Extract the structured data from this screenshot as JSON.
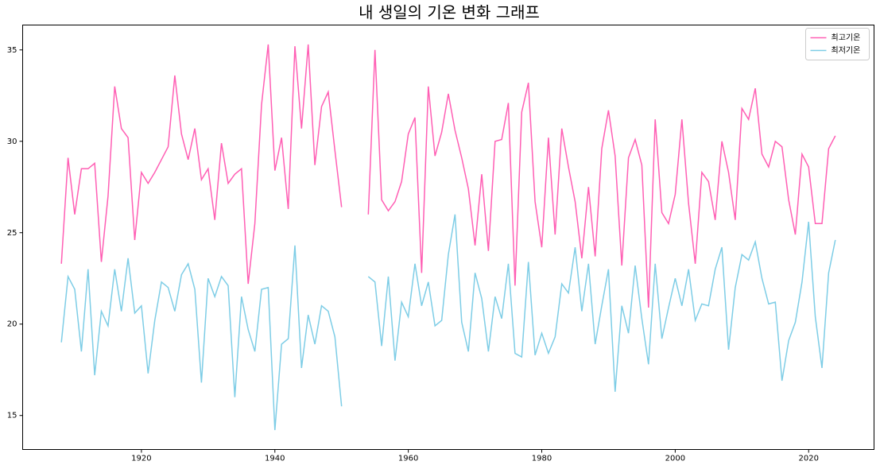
{
  "chart_data": {
    "type": "line",
    "title": "내 생일의 기온 변화 그래프",
    "x": [
      1908,
      1909,
      1910,
      1911,
      1912,
      1913,
      1914,
      1915,
      1916,
      1917,
      1918,
      1919,
      1920,
      1921,
      1922,
      1923,
      1924,
      1925,
      1926,
      1927,
      1928,
      1929,
      1930,
      1931,
      1932,
      1933,
      1934,
      1935,
      1936,
      1937,
      1938,
      1939,
      1940,
      1941,
      1942,
      1943,
      1944,
      1945,
      1946,
      1947,
      1948,
      1949,
      1950,
      1951,
      1952,
      1953,
      1954,
      1955,
      1956,
      1957,
      1958,
      1959,
      1960,
      1961,
      1962,
      1963,
      1964,
      1965,
      1966,
      1967,
      1968,
      1969,
      1970,
      1971,
      1972,
      1973,
      1974,
      1975,
      1976,
      1977,
      1978,
      1979,
      1980,
      1981,
      1982,
      1983,
      1984,
      1985,
      1986,
      1987,
      1988,
      1989,
      1990,
      1991,
      1992,
      1993,
      1994,
      1995,
      1996,
      1997,
      1998,
      1999,
      2000,
      2001,
      2002,
      2003,
      2004,
      2005,
      2006,
      2007,
      2008,
      2009,
      2010,
      2011,
      2012,
      2013,
      2014,
      2015,
      2016,
      2017,
      2018,
      2019,
      2020,
      2021,
      2022,
      2023,
      2024
    ],
    "series": [
      {
        "name": "최고기온",
        "color": "#ff5fb4",
        "values": [
          23.3,
          29.1,
          26.0,
          28.5,
          28.5,
          28.8,
          23.4,
          27.0,
          33.0,
          30.7,
          30.2,
          24.6,
          28.3,
          27.7,
          28.3,
          29.0,
          29.7,
          33.6,
          30.4,
          29.0,
          30.7,
          27.9,
          28.5,
          25.7,
          29.9,
          27.7,
          28.2,
          28.5,
          22.2,
          25.5,
          32.0,
          35.3,
          28.4,
          30.2,
          26.3,
          35.2,
          30.7,
          35.3,
          28.7,
          31.9,
          32.7,
          29.5,
          26.4,
          null,
          null,
          null,
          26.0,
          35.0,
          26.8,
          26.2,
          26.7,
          27.8,
          30.4,
          31.3,
          22.8,
          33.0,
          29.2,
          30.5,
          32.6,
          30.6,
          29.1,
          27.4,
          24.3,
          28.2,
          24.0,
          30.0,
          30.1,
          32.1,
          22.1,
          31.6,
          33.2,
          26.7,
          24.2,
          30.2,
          24.9,
          30.7,
          28.6,
          26.7,
          23.6,
          27.5,
          23.7,
          29.6,
          31.7,
          29.2,
          23.2,
          29.1,
          30.1,
          28.7,
          20.9,
          31.2,
          26.1,
          25.5,
          27.1,
          31.2,
          26.6,
          23.3,
          28.3,
          27.8,
          25.7,
          30.0,
          28.3,
          25.7,
          31.8,
          31.2,
          32.9,
          29.3,
          28.6,
          30.0,
          29.7,
          26.8,
          24.9,
          29.3,
          28.6,
          25.5,
          25.5,
          29.6,
          30.3
        ]
      },
      {
        "name": "최저기온",
        "color": "#7ecde6",
        "values": [
          19.0,
          22.6,
          21.9,
          18.5,
          23.0,
          17.2,
          20.7,
          19.9,
          23.0,
          20.7,
          23.6,
          20.6,
          21.0,
          17.3,
          20.2,
          22.3,
          22.0,
          20.7,
          22.7,
          23.3,
          21.9,
          16.8,
          22.5,
          21.5,
          22.6,
          22.1,
          16.0,
          21.5,
          19.7,
          18.5,
          21.9,
          22.0,
          14.2,
          18.9,
          19.2,
          24.3,
          17.6,
          20.5,
          18.9,
          21.0,
          20.7,
          19.3,
          15.5,
          null,
          null,
          null,
          22.6,
          22.3,
          18.8,
          22.6,
          18.0,
          21.2,
          20.4,
          23.3,
          21.0,
          22.3,
          19.9,
          20.2,
          23.8,
          26.0,
          20.1,
          18.5,
          22.8,
          21.4,
          18.5,
          21.5,
          20.3,
          23.3,
          18.4,
          18.2,
          23.4,
          18.3,
          19.5,
          18.4,
          19.3,
          22.2,
          21.7,
          24.2,
          20.7,
          23.3,
          18.9,
          21.0,
          23.0,
          16.3,
          21.0,
          19.5,
          23.2,
          20.3,
          17.8,
          23.3,
          19.2,
          20.9,
          22.5,
          21.0,
          23.0,
          20.2,
          21.1,
          21.0,
          23.0,
          24.2,
          18.6,
          22.0,
          23.8,
          23.5,
          24.5,
          22.5,
          21.1,
          21.2,
          16.9,
          19.1,
          20.1,
          22.3,
          25.6,
          20.4,
          17.6,
          22.8,
          24.6
        ]
      }
    ],
    "xlim": [
      1902.2,
      2029.8
    ],
    "xticks": [
      1920,
      1940,
      1960,
      1980,
      2000,
      2020
    ],
    "ylim": [
      13.14,
      36.36
    ],
    "yticks": [
      15,
      20,
      25,
      30,
      35
    ],
    "legend": "upper right",
    "grid": false
  }
}
